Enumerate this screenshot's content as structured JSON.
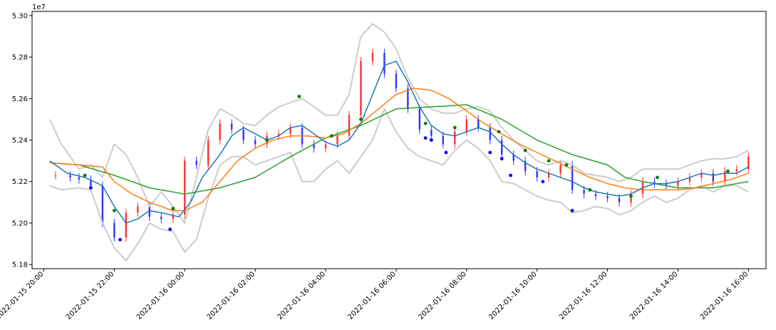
{
  "chart_data": {
    "type": "candlestick",
    "title": "",
    "xlabel": "",
    "ylabel": "",
    "y_offset_label": "1e7",
    "x_range": [
      "2022-01-15 19:40",
      "2022-01-16 16:30"
    ],
    "ylim": [
      51.78,
      53.02
    ],
    "y_ticks": [
      {
        "value": 51.8,
        "label": "5.18"
      },
      {
        "value": 52.0,
        "label": "5.20"
      },
      {
        "value": 52.2,
        "label": "5.22"
      },
      {
        "value": 52.4,
        "label": "5.24"
      },
      {
        "value": 52.6,
        "label": "5.26"
      },
      {
        "value": 52.8,
        "label": "5.28"
      },
      {
        "value": 53.0,
        "label": "5.30"
      }
    ],
    "x_ticks": [
      {
        "value": "2022-01-15 20:00",
        "label": "2022-01-15 20:00"
      },
      {
        "value": "2022-01-15 22:00",
        "label": "2022-01-15 22:00"
      },
      {
        "value": "2022-01-16 00:00",
        "label": "2022-01-16 00:00"
      },
      {
        "value": "2022-01-16 02:00",
        "label": "2022-01-16 02:00"
      },
      {
        "value": "2022-01-16 04:00",
        "label": "2022-01-16 04:00"
      },
      {
        "value": "2022-01-16 06:00",
        "label": "2022-01-16 06:00"
      },
      {
        "value": "2022-01-16 08:00",
        "label": "2022-01-16 08:00"
      },
      {
        "value": "2022-01-16 10:00",
        "label": "2022-01-16 10:00"
      },
      {
        "value": "2022-01-16 12:00",
        "label": "2022-01-16 12:00"
      },
      {
        "value": "2022-01-16 14:00",
        "label": "2022-01-16 14:00"
      },
      {
        "value": "2022-01-16 16:00",
        "label": "2022-01-16 16:00"
      }
    ],
    "price_series": {
      "color_up": "#ff3333",
      "color_down": "#3333ff",
      "x": [
        "2022-01-15 20:20",
        "2022-01-15 20:45",
        "2022-01-15 21:00",
        "2022-01-15 21:20",
        "2022-01-15 21:40",
        "2022-01-15 22:00",
        "2022-01-15 22:20",
        "2022-01-15 22:40",
        "2022-01-15 23:00",
        "2022-01-15 23:20",
        "2022-01-15 23:40",
        "2022-01-16 00:00",
        "2022-01-16 00:20",
        "2022-01-16 00:40",
        "2022-01-16 01:00",
        "2022-01-16 01:20",
        "2022-01-16 01:40",
        "2022-01-16 02:00",
        "2022-01-16 02:20",
        "2022-01-16 02:40",
        "2022-01-16 03:00",
        "2022-01-16 03:20",
        "2022-01-16 03:40",
        "2022-01-16 04:00",
        "2022-01-16 04:20",
        "2022-01-16 04:40",
        "2022-01-16 05:00",
        "2022-01-16 05:20",
        "2022-01-16 05:40",
        "2022-01-16 06:00",
        "2022-01-16 06:20",
        "2022-01-16 06:40",
        "2022-01-16 07:00",
        "2022-01-16 07:20",
        "2022-01-16 07:40",
        "2022-01-16 08:00",
        "2022-01-16 08:20",
        "2022-01-16 08:40",
        "2022-01-16 09:00",
        "2022-01-16 09:20",
        "2022-01-16 09:40",
        "2022-01-16 10:00",
        "2022-01-16 10:20",
        "2022-01-16 10:40",
        "2022-01-16 11:00",
        "2022-01-16 11:20",
        "2022-01-16 11:40",
        "2022-01-16 12:00",
        "2022-01-16 12:20",
        "2022-01-16 12:40",
        "2022-01-16 13:00",
        "2022-01-16 13:20",
        "2022-01-16 13:40",
        "2022-01-16 14:00",
        "2022-01-16 14:20",
        "2022-01-16 14:40",
        "2022-01-16 15:00",
        "2022-01-16 15:20",
        "2022-01-16 15:40",
        "2022-01-16 16:00"
      ],
      "close": [
        52.23,
        52.22,
        52.21,
        52.18,
        52.0,
        51.93,
        52.05,
        52.08,
        52.03,
        52.02,
        52.04,
        52.3,
        52.28,
        52.4,
        52.48,
        52.45,
        52.4,
        52.38,
        52.42,
        52.43,
        52.46,
        52.38,
        52.36,
        52.38,
        52.42,
        52.52,
        52.78,
        52.82,
        52.72,
        52.65,
        52.55,
        52.45,
        52.42,
        52.38,
        52.44,
        52.5,
        52.46,
        52.4,
        52.33,
        52.3,
        52.25,
        52.22,
        52.24,
        52.28,
        52.16,
        52.14,
        52.13,
        52.12,
        52.1,
        52.14,
        52.2,
        52.19,
        52.18,
        52.2,
        52.22,
        52.24,
        52.2,
        52.25,
        52.26,
        52.32
      ]
    },
    "series": [
      {
        "color": "#1f77b4",
        "x": [
          "2022-01-15 20:10",
          "2022-01-15 20:40",
          "2022-01-15 21:10",
          "2022-01-15 21:40",
          "2022-01-15 22:00",
          "2022-01-15 22:20",
          "2022-01-15 22:40",
          "2022-01-15 23:00",
          "2022-01-15 23:20",
          "2022-01-15 23:50",
          "2022-01-16 00:10",
          "2022-01-16 00:30",
          "2022-01-16 01:00",
          "2022-01-16 01:20",
          "2022-01-16 01:40",
          "2022-01-16 02:00",
          "2022-01-16 02:20",
          "2022-01-16 02:40",
          "2022-01-16 03:00",
          "2022-01-16 03:20",
          "2022-01-16 03:40",
          "2022-01-16 04:00",
          "2022-01-16 04:20",
          "2022-01-16 04:40",
          "2022-01-16 05:00",
          "2022-01-16 05:20",
          "2022-01-16 05:40",
          "2022-01-16 06:00",
          "2022-01-16 06:20",
          "2022-01-16 06:40",
          "2022-01-16 07:00",
          "2022-01-16 07:20",
          "2022-01-16 07:40",
          "2022-01-16 08:00",
          "2022-01-16 08:20",
          "2022-01-16 08:40",
          "2022-01-16 09:00",
          "2022-01-16 09:20",
          "2022-01-16 09:40",
          "2022-01-16 10:00",
          "2022-01-16 10:20",
          "2022-01-16 10:40",
          "2022-01-16 11:00",
          "2022-01-16 11:20",
          "2022-01-16 11:40",
          "2022-01-16 12:00",
          "2022-01-16 12:20",
          "2022-01-16 12:40",
          "2022-01-16 13:00",
          "2022-01-16 13:20",
          "2022-01-16 13:40",
          "2022-01-16 14:00",
          "2022-01-16 14:20",
          "2022-01-16 14:40",
          "2022-01-16 15:00",
          "2022-01-16 15:20",
          "2022-01-16 15:40",
          "2022-01-16 16:00"
        ],
        "y": [
          52.3,
          52.24,
          52.22,
          52.18,
          52.08,
          52.0,
          52.02,
          52.06,
          52.05,
          52.03,
          52.1,
          52.22,
          52.33,
          52.42,
          52.46,
          52.43,
          52.4,
          52.42,
          52.46,
          52.47,
          52.43,
          52.39,
          52.37,
          52.4,
          52.48,
          52.62,
          52.76,
          52.78,
          52.68,
          52.56,
          52.47,
          52.43,
          52.42,
          52.44,
          52.46,
          52.44,
          52.38,
          52.33,
          52.29,
          52.26,
          52.24,
          52.22,
          52.2,
          52.17,
          52.15,
          52.14,
          52.13,
          52.14,
          52.17,
          52.19,
          52.19,
          52.2,
          52.22,
          52.24,
          52.23,
          52.24,
          52.24,
          52.27
        ]
      },
      {
        "color": "#ff7f0e",
        "x": [
          "2022-01-15 20:10",
          "2022-01-15 21:00",
          "2022-01-15 21:40",
          "2022-01-15 22:00",
          "2022-01-15 22:30",
          "2022-01-15 23:00",
          "2022-01-15 23:40",
          "2022-01-16 00:00",
          "2022-01-16 00:30",
          "2022-01-16 01:00",
          "2022-01-16 01:30",
          "2022-01-16 02:00",
          "2022-01-16 02:30",
          "2022-01-16 03:00",
          "2022-01-16 03:30",
          "2022-01-16 04:00",
          "2022-01-16 04:30",
          "2022-01-16 05:00",
          "2022-01-16 05:30",
          "2022-01-16 06:00",
          "2022-01-16 06:30",
          "2022-01-16 07:00",
          "2022-01-16 07:30",
          "2022-01-16 08:00",
          "2022-01-16 08:30",
          "2022-01-16 09:00",
          "2022-01-16 09:30",
          "2022-01-16 10:00",
          "2022-01-16 10:30",
          "2022-01-16 11:00",
          "2022-01-16 11:30",
          "2022-01-16 12:00",
          "2022-01-16 12:30",
          "2022-01-16 13:00",
          "2022-01-16 13:30",
          "2022-01-16 14:00",
          "2022-01-16 14:30",
          "2022-01-16 15:00",
          "2022-01-16 15:30",
          "2022-01-16 16:00"
        ],
        "y": [
          52.29,
          52.28,
          52.27,
          52.2,
          52.14,
          52.1,
          52.06,
          52.06,
          52.1,
          52.2,
          52.3,
          52.36,
          52.4,
          52.42,
          52.42,
          52.41,
          52.43,
          52.48,
          52.55,
          52.62,
          52.65,
          52.64,
          52.6,
          52.54,
          52.48,
          52.43,
          52.38,
          52.34,
          52.3,
          52.26,
          52.22,
          52.19,
          52.17,
          52.16,
          52.16,
          52.16,
          52.17,
          52.19,
          52.21,
          52.24
        ]
      },
      {
        "color": "#2ca02c",
        "x": [
          "2022-01-15 20:10",
          "2022-01-15 21:00",
          "2022-01-15 22:00",
          "2022-01-15 23:00",
          "2022-01-16 00:00",
          "2022-01-16 01:00",
          "2022-01-16 02:00",
          "2022-01-16 03:00",
          "2022-01-16 04:00",
          "2022-01-16 05:00",
          "2022-01-16 06:00",
          "2022-01-16 07:00",
          "2022-01-16 08:00",
          "2022-01-16 09:00",
          "2022-01-16 10:00",
          "2022-01-16 11:00",
          "2022-01-16 12:00",
          "2022-01-16 12:30",
          "2022-01-16 13:00",
          "2022-01-16 14:00",
          "2022-01-16 15:00",
          "2022-01-16 16:00"
        ],
        "y": [
          52.29,
          52.28,
          52.23,
          52.17,
          52.14,
          52.17,
          52.22,
          52.32,
          52.41,
          52.47,
          52.55,
          52.56,
          52.57,
          52.5,
          52.4,
          52.33,
          52.28,
          52.22,
          52.2,
          52.17,
          52.17,
          52.2
        ]
      },
      {
        "color": "#cccccc",
        "x": [
          "2022-01-15 20:10",
          "2022-01-15 20:30",
          "2022-01-15 21:00",
          "2022-01-15 21:20",
          "2022-01-15 21:40",
          "2022-01-15 22:00",
          "2022-01-15 22:20",
          "2022-01-15 22:40",
          "2022-01-15 23:00",
          "2022-01-15 23:20",
          "2022-01-15 23:40",
          "2022-01-16 00:00",
          "2022-01-16 00:20",
          "2022-01-16 00:40",
          "2022-01-16 01:00",
          "2022-01-16 01:20",
          "2022-01-16 01:40",
          "2022-01-16 02:00",
          "2022-01-16 02:20",
          "2022-01-16 02:40",
          "2022-01-16 03:00",
          "2022-01-16 03:20",
          "2022-01-16 03:40",
          "2022-01-16 04:00",
          "2022-01-16 04:20",
          "2022-01-16 04:40",
          "2022-01-16 05:00",
          "2022-01-16 05:20",
          "2022-01-16 05:40",
          "2022-01-16 06:00",
          "2022-01-16 06:20",
          "2022-01-16 06:40",
          "2022-01-16 07:00",
          "2022-01-16 07:20",
          "2022-01-16 07:40",
          "2022-01-16 08:00",
          "2022-01-16 08:20",
          "2022-01-16 08:40",
          "2022-01-16 09:00",
          "2022-01-16 09:20",
          "2022-01-16 09:40",
          "2022-01-16 10:00",
          "2022-01-16 10:20",
          "2022-01-16 10:40",
          "2022-01-16 11:00",
          "2022-01-16 11:20",
          "2022-01-16 11:40",
          "2022-01-16 12:00",
          "2022-01-16 12:20",
          "2022-01-16 12:40",
          "2022-01-16 13:00",
          "2022-01-16 13:20",
          "2022-01-16 13:40",
          "2022-01-16 14:00",
          "2022-01-16 14:20",
          "2022-01-16 14:40",
          "2022-01-16 15:00",
          "2022-01-16 15:20",
          "2022-01-16 15:40",
          "2022-01-16 16:00"
        ],
        "y": [
          52.5,
          52.38,
          52.26,
          52.28,
          52.22,
          52.38,
          52.33,
          52.22,
          52.08,
          52.15,
          52.08,
          52.0,
          52.22,
          52.45,
          52.55,
          52.52,
          52.48,
          52.47,
          52.52,
          52.56,
          52.58,
          52.6,
          52.56,
          52.52,
          52.52,
          52.62,
          52.9,
          52.96,
          52.92,
          52.84,
          52.7,
          52.6,
          52.55,
          52.53,
          52.53,
          52.55,
          52.56,
          52.54,
          52.46,
          52.4,
          52.35,
          52.3,
          52.28,
          52.3,
          52.28,
          52.24,
          52.23,
          52.22,
          52.2,
          52.22,
          52.26,
          52.26,
          52.26,
          52.26,
          52.28,
          52.3,
          52.31,
          52.31,
          52.32,
          52.35
        ]
      },
      {
        "color": "#cccccc",
        "x": [
          "2022-01-15 20:10",
          "2022-01-15 20:30",
          "2022-01-15 21:00",
          "2022-01-15 21:20",
          "2022-01-15 21:40",
          "2022-01-15 22:00",
          "2022-01-15 22:20",
          "2022-01-15 22:40",
          "2022-01-15 23:00",
          "2022-01-15 23:20",
          "2022-01-15 23:40",
          "2022-01-16 00:00",
          "2022-01-16 00:20",
          "2022-01-16 00:40",
          "2022-01-16 01:00",
          "2022-01-16 01:20",
          "2022-01-16 01:40",
          "2022-01-16 02:00",
          "2022-01-16 02:20",
          "2022-01-16 02:40",
          "2022-01-16 03:00",
          "2022-01-16 03:20",
          "2022-01-16 03:40",
          "2022-01-16 04:00",
          "2022-01-16 04:20",
          "2022-01-16 04:40",
          "2022-01-16 05:00",
          "2022-01-16 05:20",
          "2022-01-16 05:40",
          "2022-01-16 06:00",
          "2022-01-16 06:20",
          "2022-01-16 06:40",
          "2022-01-16 07:00",
          "2022-01-16 07:20",
          "2022-01-16 07:40",
          "2022-01-16 08:00",
          "2022-01-16 08:20",
          "2022-01-16 08:40",
          "2022-01-16 09:00",
          "2022-01-16 09:20",
          "2022-01-16 09:40",
          "2022-01-16 10:00",
          "2022-01-16 10:20",
          "2022-01-16 10:40",
          "2022-01-16 11:00",
          "2022-01-16 11:20",
          "2022-01-16 11:40",
          "2022-01-16 12:00",
          "2022-01-16 12:20",
          "2022-01-16 12:40",
          "2022-01-16 13:00",
          "2022-01-16 13:20",
          "2022-01-16 13:40",
          "2022-01-16 14:00",
          "2022-01-16 14:20",
          "2022-01-16 14:40",
          "2022-01-16 15:00",
          "2022-01-16 15:20",
          "2022-01-16 15:40",
          "2022-01-16 16:00"
        ],
        "y": [
          52.18,
          52.16,
          52.17,
          52.16,
          52.0,
          51.88,
          51.82,
          51.9,
          52.0,
          51.97,
          51.96,
          51.86,
          51.92,
          52.12,
          52.28,
          52.32,
          52.32,
          52.28,
          52.3,
          52.32,
          52.34,
          52.2,
          52.2,
          52.26,
          52.3,
          52.24,
          52.32,
          52.4,
          52.55,
          52.44,
          52.36,
          52.32,
          52.3,
          52.28,
          52.35,
          52.4,
          52.36,
          52.3,
          52.2,
          52.19,
          52.16,
          52.13,
          52.11,
          52.1,
          52.05,
          52.06,
          52.08,
          52.07,
          52.04,
          52.06,
          52.1,
          52.13,
          52.1,
          52.12,
          52.16,
          52.18,
          52.15,
          52.18,
          52.18,
          52.15
        ]
      }
    ],
    "markers": [
      {
        "color": "#008000",
        "x": [
          "2022-01-15 21:10",
          "2022-01-15 22:00",
          "2022-01-15 23:40",
          "2022-01-16 02:20",
          "2022-01-16 03:15",
          "2022-01-16 04:10",
          "2022-01-16 05:00",
          "2022-01-16 06:50",
          "2022-01-16 07:40",
          "2022-01-16 08:55",
          "2022-01-16 09:40",
          "2022-01-16 10:20",
          "2022-01-16 10:50",
          "2022-01-16 11:30",
          "2022-01-16 12:40",
          "2022-01-16 13:25",
          "2022-01-16 15:25"
        ],
        "y": [
          52.23,
          52.06,
          52.07,
          52.4,
          52.61,
          52.42,
          52.5,
          52.48,
          52.46,
          52.44,
          52.35,
          52.3,
          52.28,
          52.16,
          52.13,
          52.22,
          52.25
        ]
      },
      {
        "color": "#0000ff",
        "x": [
          "2022-01-15 21:20",
          "2022-01-15 22:10",
          "2022-01-15 23:35",
          "2022-01-16 06:50",
          "2022-01-16 07:00",
          "2022-01-16 07:25",
          "2022-01-16 08:40",
          "2022-01-16 09:00",
          "2022-01-16 09:15",
          "2022-01-16 10:10",
          "2022-01-16 11:00"
        ],
        "y": [
          52.17,
          51.92,
          51.97,
          52.41,
          52.4,
          52.34,
          52.34,
          52.31,
          52.23,
          52.2,
          52.06
        ]
      }
    ]
  }
}
